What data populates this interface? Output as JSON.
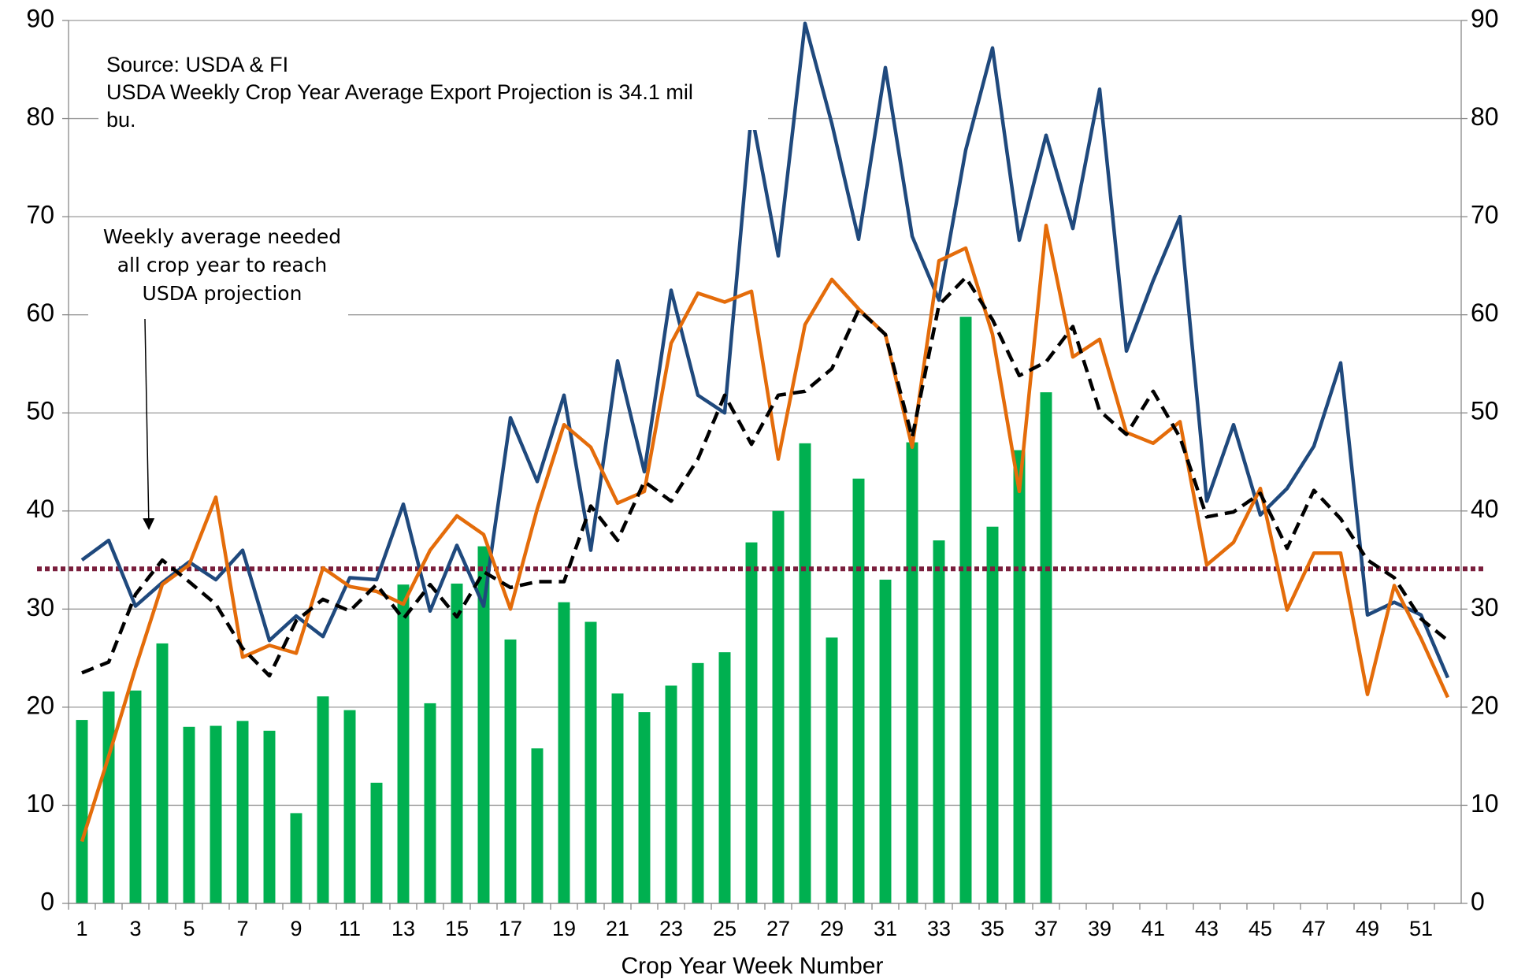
{
  "chart_data": {
    "type": "combo",
    "x_label": "Crop Year Week Number",
    "categories": [
      1,
      null,
      3,
      null,
      5,
      null,
      7,
      null,
      9,
      null,
      11,
      null,
      13,
      null,
      15,
      null,
      17,
      null,
      19,
      null,
      21,
      null,
      23,
      null,
      25,
      null,
      27,
      null,
      29,
      null,
      31,
      null,
      33,
      null,
      35,
      null,
      37,
      null,
      39,
      null,
      41,
      null,
      43,
      null,
      45,
      null,
      47,
      null,
      49,
      null,
      51,
      null
    ],
    "series": [
      {
        "type": "bar",
        "color": "#00b050",
        "values": [
          18.7,
          21.6,
          21.7,
          26.5,
          18,
          18.1,
          18.6,
          17.6,
          9.2,
          21.1,
          19.7,
          12.3,
          32.5,
          20.4,
          32.6,
          36.4,
          26.9,
          15.8,
          30.7,
          28.7,
          21.4,
          19.5,
          22.2,
          24.5,
          25.6,
          36.8,
          40,
          46.9,
          27.1,
          43.3,
          33,
          47,
          37,
          59.8,
          38.4,
          46.2,
          52.1,
          null,
          null,
          null,
          null,
          null,
          null,
          null,
          null,
          null,
          null,
          null,
          null,
          null,
          null,
          null
        ]
      },
      {
        "type": "line",
        "color": "#1f497d",
        "values": [
          35,
          37,
          30.3,
          32.7,
          34.8,
          33,
          36,
          26.8,
          29.3,
          27.2,
          33.2,
          33,
          40.7,
          29.8,
          36.5,
          30.3,
          49.5,
          43,
          51.8,
          36,
          55.3,
          44,
          62.5,
          51.8,
          50,
          80.6,
          66,
          89.7,
          79.5,
          67.7,
          85.2,
          68,
          61.5,
          76.8,
          87.2,
          67.6,
          78.3,
          68.8,
          83,
          56.3,
          63.5,
          70,
          41,
          48.8,
          39.6,
          42.3,
          46.6,
          55.1,
          29.4,
          30.7,
          29.4,
          23
        ]
      },
      {
        "type": "line",
        "color": "#e46c0a",
        "values": [
          6.3,
          15,
          24,
          32.5,
          34.5,
          41.4,
          25.1,
          26.3,
          25.5,
          34.2,
          32.3,
          31.8,
          30.5,
          36,
          39.5,
          37.6,
          30,
          40.2,
          48.8,
          46.5,
          40.8,
          42,
          57.1,
          62.2,
          61.3,
          62.4,
          45.3,
          59,
          63.6,
          60.6,
          58,
          46.5,
          65.5,
          66.8,
          58,
          42,
          69.1,
          55.7,
          57.5,
          48,
          46.9,
          49.1,
          34.5,
          36.8,
          42.3,
          29.9,
          35.7,
          35.7,
          21.3,
          32.4,
          27,
          21
        ]
      },
      {
        "type": "line",
        "color": "#000000",
        "dash": true,
        "values": [
          23.5,
          24.6,
          31.5,
          35,
          32.8,
          30.5,
          26,
          23.2,
          28.8,
          31,
          29.8,
          32.5,
          29,
          32.5,
          29.2,
          33.8,
          32.2,
          32.8,
          32.8,
          40.5,
          37,
          43,
          41,
          45.3,
          51.8,
          46.8,
          51.8,
          52.2,
          54.5,
          60.5,
          58,
          47.5,
          61,
          63.8,
          59.5,
          53.8,
          55.2,
          58.8,
          50.2,
          47.8,
          52.2,
          47.5,
          39.4,
          39.9,
          41.8,
          36.2,
          42.1,
          39.2,
          35,
          33.2,
          29,
          26.8
        ]
      }
    ],
    "reference_lines": [
      {
        "value": 34.1,
        "color": "#7a1f3d",
        "style": "dotted"
      }
    ],
    "ylim": [
      0,
      90
    ],
    "yticks": [
      0,
      10,
      20,
      30,
      40,
      50,
      60,
      70,
      80,
      90
    ],
    "y2lim": [
      0,
      90
    ],
    "y2ticks": [
      0,
      10,
      20,
      30,
      40,
      50,
      60,
      70,
      80,
      90
    ],
    "grid": true,
    "annotations": [
      {
        "lines": [
          "Source: USDA & FI",
          "USDA Weekly Crop Year Average Export Projection is 34.1 mil",
          "bu."
        ]
      },
      {
        "lines": [
          "Weekly average needed",
          "all crop year to reach",
          "USDA projection"
        ]
      }
    ]
  }
}
